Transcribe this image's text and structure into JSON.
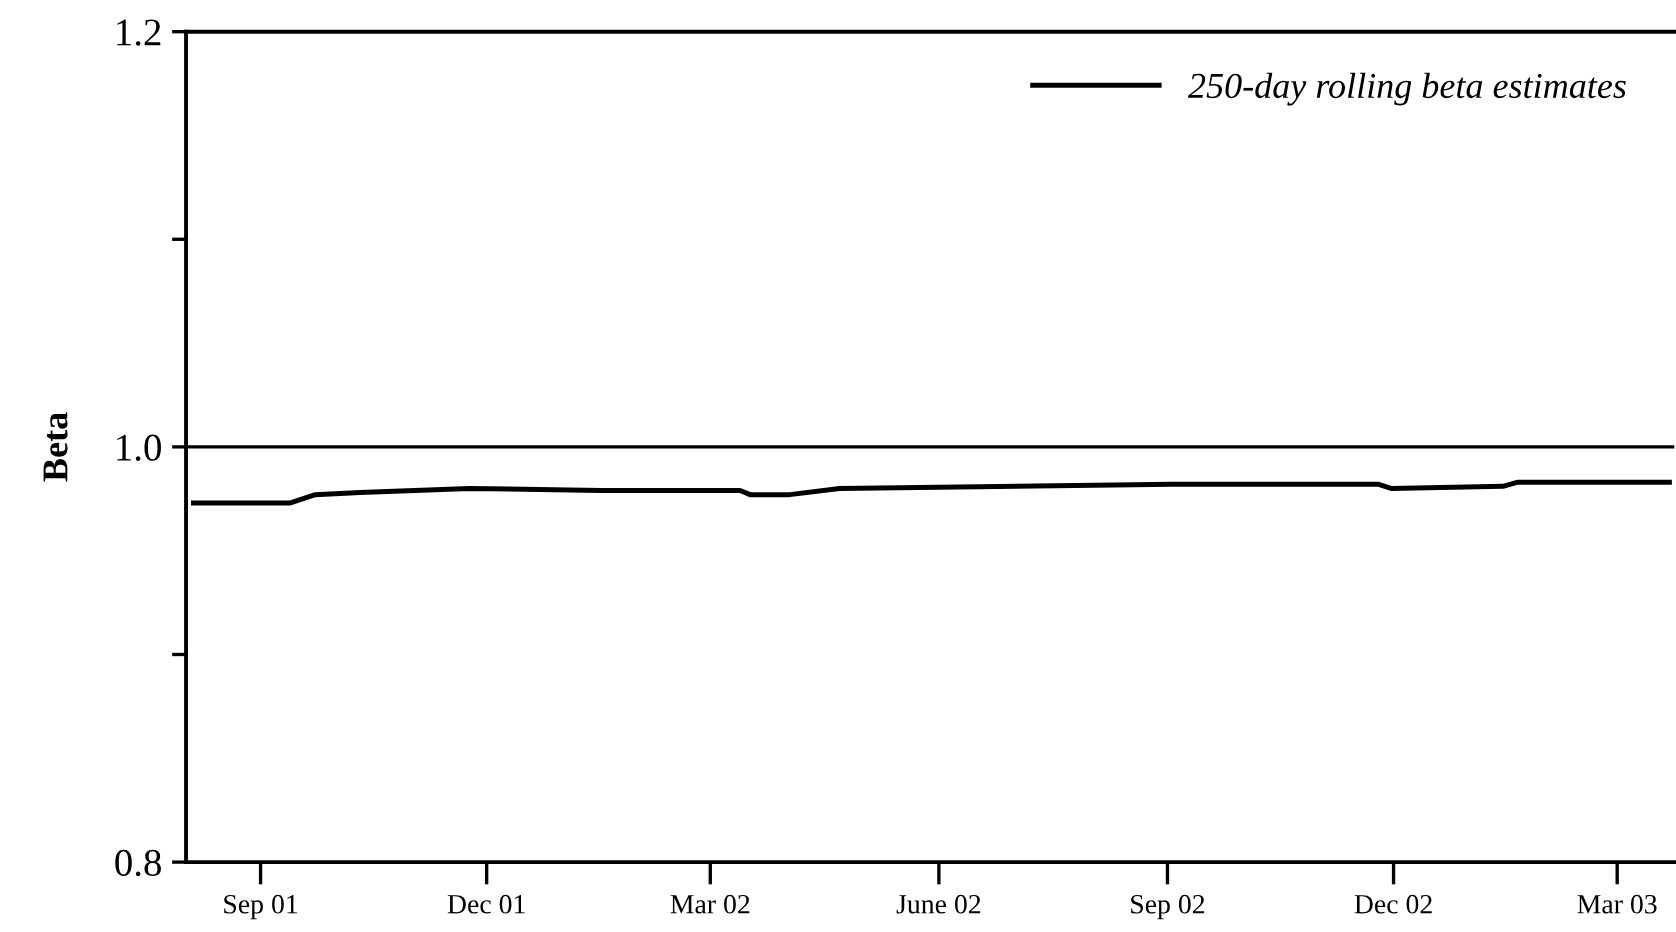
{
  "chart_data": {
    "type": "line",
    "ylabel": "Beta",
    "x": [
      "2001-08-05",
      "2001-09-13",
      "2001-09-23",
      "2001-10-11",
      "2001-11-24",
      "2002-01-16",
      "2002-03-13",
      "2002-03-17",
      "2002-04-02",
      "2002-04-22",
      "2002-09-03",
      "2002-11-25",
      "2002-11-30",
      "2003-01-14",
      "2003-01-20",
      "2003-03-04",
      "2003-03-07",
      "2003-03-22"
    ],
    "series": [
      {
        "name": "250-day rolling beta estimates",
        "color": "#000000",
        "values": [
          0.973,
          0.973,
          0.977,
          0.978,
          0.98,
          0.979,
          0.979,
          0.977,
          0.977,
          0.98,
          0.982,
          0.982,
          0.98,
          0.981,
          0.983,
          0.983,
          0.983,
          0.983
        ]
      }
    ],
    "xlim": [
      "2001-08-02",
      "2003-03-24"
    ],
    "xticks": [
      {
        "value": "2001-09-01",
        "label": "Sep 01"
      },
      {
        "value": "2001-12-01",
        "label": "Dec 01"
      },
      {
        "value": "2002-03-01",
        "label": "Mar 02"
      },
      {
        "value": "2002-06-01",
        "label": "June 02"
      },
      {
        "value": "2002-09-01",
        "label": "Sep 02"
      },
      {
        "value": "2002-12-01",
        "label": "Dec 02"
      },
      {
        "value": "2003-03-01",
        "label": "Mar 03"
      }
    ],
    "ylim": [
      0.8,
      1.2
    ],
    "yticks": [
      {
        "value": 0.8,
        "label": "0.8"
      },
      {
        "value": 0.9,
        "label": null
      },
      {
        "value": 1.0,
        "label": "1.0"
      },
      {
        "value": 1.1,
        "label": null
      },
      {
        "value": 1.2,
        "label": "1.2"
      }
    ],
    "ref_lines": [
      {
        "axis": "y",
        "value": 1.0,
        "color": "#000000"
      }
    ],
    "legend": "top right",
    "grid": false,
    "marker": "none",
    "line_style": "solid"
  }
}
